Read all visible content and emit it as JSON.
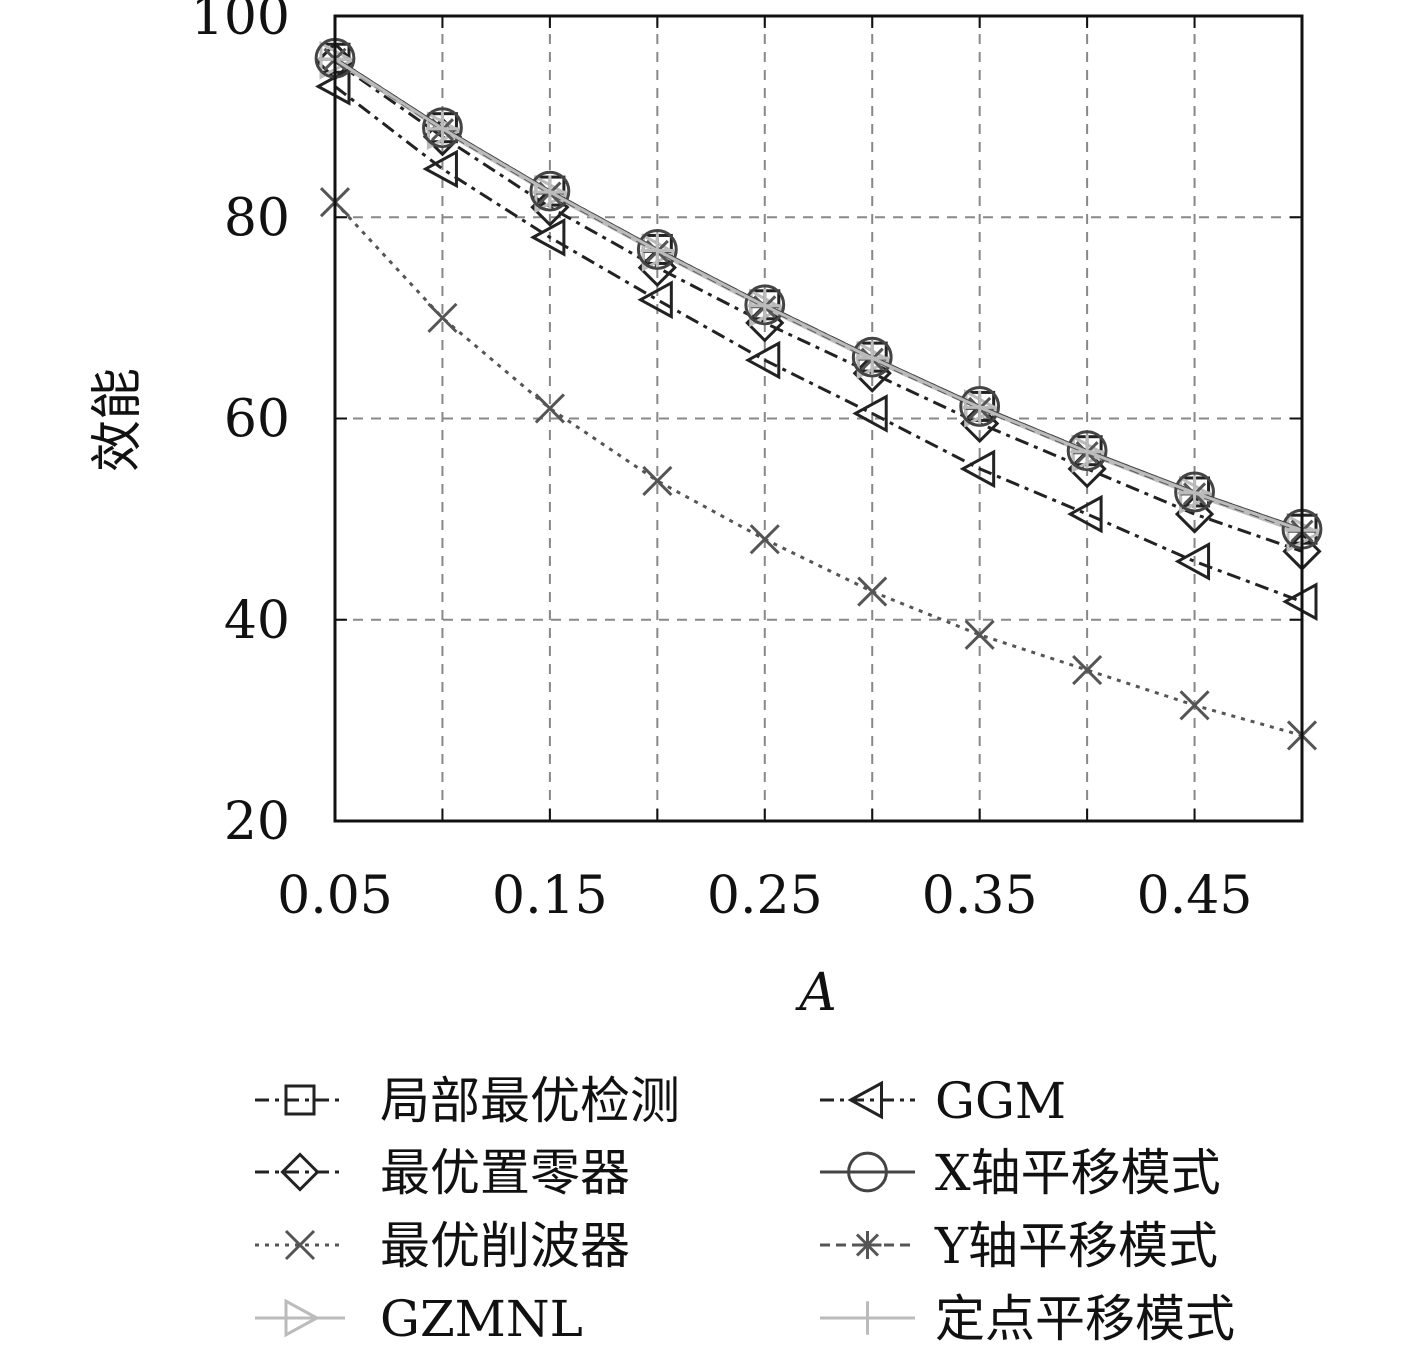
{
  "chart_data": {
    "type": "line",
    "xlabel": "A",
    "ylabel": "效能",
    "xlim": [
      0.05,
      0.5
    ],
    "ylim": [
      20,
      100
    ],
    "x_ticks": [
      "0.05",
      "0.15",
      "0.25",
      "0.35",
      "0.45"
    ],
    "y_ticks": [
      "20",
      "40",
      "60",
      "80",
      "100"
    ],
    "grid": true,
    "legend_position": "bottom",
    "x": [
      0.05,
      0.1,
      0.15,
      0.2,
      0.25,
      0.3,
      0.35,
      0.4,
      0.45,
      0.5
    ],
    "series": [
      {
        "name": "局部最优检测",
        "color": "#222222",
        "marker": "square",
        "dash": "14 6 4 6",
        "values": [
          95.8,
          88.9,
          82.6,
          76.8,
          71.3,
          66.1,
          61.2,
          56.8,
          52.7,
          49.0
        ]
      },
      {
        "name": "最优置零器",
        "color": "#222222",
        "marker": "diamond",
        "dash": "14 6 4 6",
        "values": [
          95.5,
          88.0,
          81.0,
          75.0,
          69.5,
          64.5,
          59.5,
          55.0,
          50.5,
          46.8
        ]
      },
      {
        "name": "最优削波器",
        "color": "#555555",
        "marker": "x",
        "dash": "4 6",
        "values": [
          81.5,
          70.0,
          61.0,
          53.8,
          48.0,
          42.8,
          38.5,
          35.0,
          31.5,
          28.5
        ]
      },
      {
        "name": "GZMNL",
        "color": "#bbbbbb",
        "marker": "tri-right",
        "dash": "",
        "values": [
          95.6,
          88.6,
          82.3,
          76.5,
          71.0,
          65.8,
          61.0,
          56.5,
          52.4,
          48.6
        ]
      },
      {
        "name": "GGM",
        "color": "#222222",
        "marker": "tri-left",
        "dash": "14 6 4 6",
        "values": [
          93.0,
          84.8,
          78.0,
          71.8,
          65.8,
          60.5,
          55.0,
          50.5,
          45.8,
          41.8
        ]
      },
      {
        "name": "X轴平移模式",
        "color": "#444444",
        "marker": "circle",
        "dash": "",
        "values": [
          95.8,
          88.9,
          82.6,
          76.8,
          71.3,
          66.1,
          61.2,
          56.8,
          52.7,
          49.0
        ]
      },
      {
        "name": "Y轴平移模式",
        "color": "#555555",
        "marker": "asterisk",
        "dash": "10 6",
        "values": [
          95.7,
          88.7,
          82.4,
          76.6,
          71.1,
          65.9,
          61.0,
          56.6,
          52.5,
          48.8
        ]
      },
      {
        "name": "定点平移模式",
        "color": "#bbbbbb",
        "marker": "plus",
        "dash": "",
        "values": [
          95.7,
          88.8,
          82.5,
          76.7,
          71.2,
          66.0,
          61.1,
          56.7,
          52.6,
          48.9
        ]
      }
    ]
  }
}
